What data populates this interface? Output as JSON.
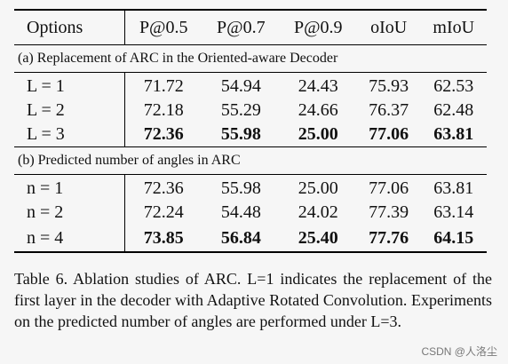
{
  "table": {
    "headers": [
      "Options",
      "P@0.5",
      "P@0.7",
      "P@0.9",
      "oIoU",
      "mIoU"
    ],
    "sections": [
      {
        "title": "(a) Replacement of ARC in the Oriented-aware Decoder",
        "rows": [
          {
            "option": "L = 1",
            "values": [
              "71.72",
              "54.94",
              "24.43",
              "75.93",
              "62.53"
            ],
            "bold": false
          },
          {
            "option": "L = 2",
            "values": [
              "72.18",
              "55.29",
              "24.66",
              "76.37",
              "62.48"
            ],
            "bold": false
          },
          {
            "option": "L = 3",
            "values": [
              "72.36",
              "55.98",
              "25.00",
              "77.06",
              "63.81"
            ],
            "bold": true
          }
        ]
      },
      {
        "title": "(b) Predicted number of angles in ARC",
        "rows": [
          {
            "option": "n = 1",
            "values": [
              "72.36",
              "55.98",
              "25.00",
              "77.06",
              "63.81"
            ],
            "bold": false
          },
          {
            "option": "n = 2",
            "values": [
              "72.24",
              "54.48",
              "24.02",
              "77.39",
              "63.14"
            ],
            "bold": false
          },
          {
            "option": "n = 4",
            "values": [
              "73.85",
              "56.84",
              "25.40",
              "77.76",
              "64.15"
            ],
            "bold": true
          }
        ]
      }
    ]
  },
  "caption": "Table 6. Ablation studies of ARC. L=1 indicates the replacement of the first layer in the decoder with Adaptive Rotated Convolution. Experiments on the predicted number of angles are performed under L=3.",
  "watermark": "CSDN @人洛尘"
}
